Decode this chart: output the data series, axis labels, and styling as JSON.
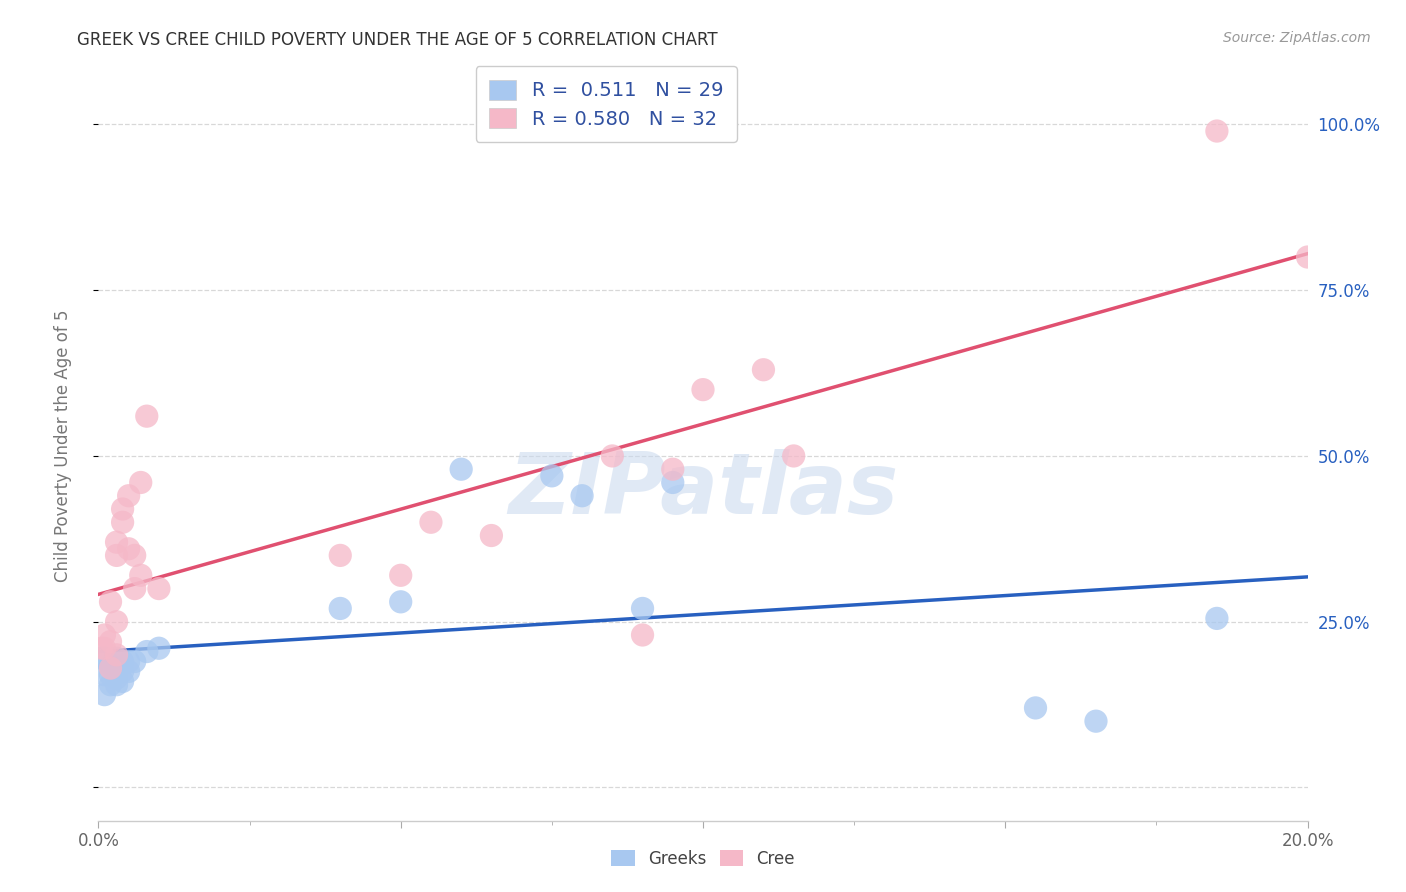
{
  "title": "GREEK VS CREE CHILD POVERTY UNDER THE AGE OF 5 CORRELATION CHART",
  "source": "Source: ZipAtlas.com",
  "ylabel": "Child Poverty Under the Age of 5",
  "xlim": [
    0.0,
    0.2
  ],
  "ylim": [
    -0.05,
    1.08
  ],
  "ytick_positions": [
    0.0,
    0.25,
    0.5,
    0.75,
    1.0
  ],
  "ytick_labels": [
    "",
    "25.0%",
    "50.0%",
    "75.0%",
    "100.0%"
  ],
  "greek_R": 0.511,
  "greek_N": 29,
  "cree_R": 0.58,
  "cree_N": 32,
  "greek_color": "#A8C8F0",
  "cree_color": "#F5B8C8",
  "greek_line_color": "#2860C0",
  "cree_line_color": "#E05070",
  "legend_text_color": "#3050A0",
  "watermark": "ZIPatlas",
  "background_color": "#ffffff",
  "grid_color": "#d8d8d8",
  "greek_x": [
    0.0005,
    0.001,
    0.001,
    0.001,
    0.002,
    0.002,
    0.002,
    0.003,
    0.003,
    0.003,
    0.003,
    0.004,
    0.004,
    0.004,
    0.005,
    0.005,
    0.006,
    0.008,
    0.01,
    0.04,
    0.05,
    0.06,
    0.075,
    0.08,
    0.09,
    0.095,
    0.155,
    0.165,
    0.185
  ],
  "greek_y": [
    0.195,
    0.14,
    0.17,
    0.195,
    0.155,
    0.17,
    0.185,
    0.155,
    0.165,
    0.175,
    0.195,
    0.16,
    0.175,
    0.19,
    0.175,
    0.19,
    0.19,
    0.205,
    0.21,
    0.27,
    0.28,
    0.48,
    0.47,
    0.44,
    0.27,
    0.46,
    0.12,
    0.1,
    0.255
  ],
  "cree_x": [
    0.0005,
    0.001,
    0.001,
    0.002,
    0.002,
    0.002,
    0.003,
    0.003,
    0.003,
    0.003,
    0.004,
    0.004,
    0.005,
    0.005,
    0.006,
    0.006,
    0.007,
    0.007,
    0.008,
    0.01,
    0.04,
    0.05,
    0.055,
    0.065,
    0.085,
    0.09,
    0.095,
    0.1,
    0.11,
    0.115,
    0.185,
    0.2
  ],
  "cree_y": [
    0.21,
    0.21,
    0.23,
    0.18,
    0.22,
    0.28,
    0.2,
    0.25,
    0.35,
    0.37,
    0.4,
    0.42,
    0.36,
    0.44,
    0.3,
    0.35,
    0.32,
    0.46,
    0.56,
    0.3,
    0.35,
    0.32,
    0.4,
    0.38,
    0.5,
    0.23,
    0.48,
    0.6,
    0.63,
    0.5,
    0.99,
    0.8
  ]
}
